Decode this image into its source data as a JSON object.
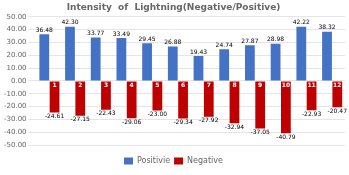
{
  "chart_data": {
    "type": "bar",
    "title": "Intensity  of  Lightning(Negative/Positive)",
    "categories": [
      "1",
      "2",
      "3",
      "4",
      "5",
      "6",
      "7",
      "8",
      "9",
      "10",
      "11",
      "12"
    ],
    "series": [
      {
        "name": "Positivie",
        "color": "#4472C4",
        "values": [
          36.48,
          42.3,
          33.77,
          33.49,
          29.45,
          26.88,
          19.43,
          24.74,
          27.87,
          28.98,
          42.22,
          38.32
        ],
        "value_labels": [
          "36.48",
          "42.30",
          "33.77",
          "33.49",
          "29.45",
          "26.88",
          "19.43",
          "24.74",
          "27.87",
          "28.98",
          "42.22",
          "38.32"
        ]
      },
      {
        "name": "Negative",
        "color": "#BE0000",
        "values": [
          -24.61,
          -27.15,
          -22.43,
          -29.06,
          -23.0,
          -29.34,
          -27.92,
          -32.94,
          -37.05,
          -40.79,
          -22.93,
          -20.47
        ],
        "value_labels": [
          "-24.61",
          "-27.15",
          "-22.43",
          "-29.06",
          "-23.00",
          "-29.34",
          "-27.92",
          "-32.94",
          "-37.05",
          "-40.79",
          "-22.93",
          "-20.47"
        ]
      }
    ],
    "ylim": [
      -50,
      50
    ],
    "yticks": [
      {
        "value": -50,
        "label": "-50.00"
      },
      {
        "value": -40,
        "label": "-40.00"
      },
      {
        "value": -30,
        "label": "-30.00"
      },
      {
        "value": -20,
        "label": "-20.00"
      },
      {
        "value": -10,
        "label": "-10.00"
      },
      {
        "value": 0,
        "label": "0.00"
      },
      {
        "value": 10,
        "label": "10.00"
      },
      {
        "value": 20,
        "label": "20.00"
      },
      {
        "value": 30,
        "label": "30.00"
      },
      {
        "value": 40,
        "label": "40.00"
      },
      {
        "value": 50,
        "label": "50.00"
      }
    ],
    "grid": true,
    "legend": "bottom",
    "data_labels": true,
    "tick_labels": "y"
  }
}
